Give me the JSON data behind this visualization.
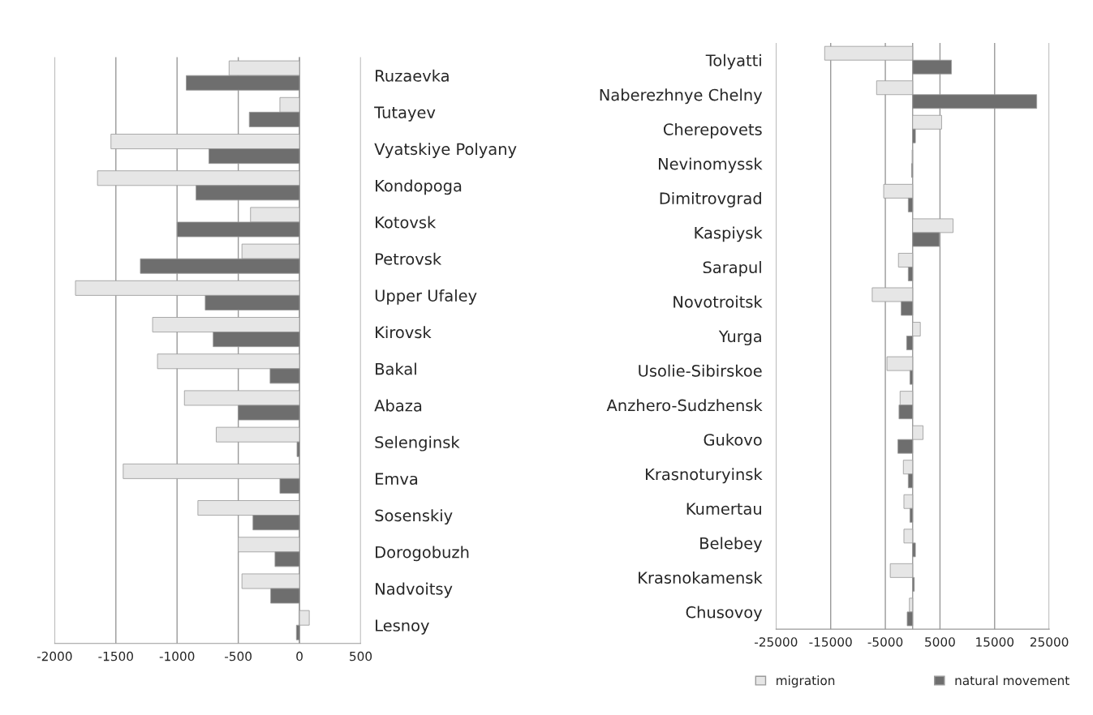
{
  "chart_data": [
    {
      "type": "bar",
      "orientation": "horizontal",
      "categories": [
        "Ruzaevka",
        "Tutayev",
        "Vyatskiye Polyany",
        "Kondopoga",
        "Kotovsk",
        "Petrovsk",
        "Upper Ufaley",
        "Kirovsk",
        "Bakal",
        "Abaza",
        "Selenginsk",
        "Emva",
        "Sosenskiy",
        "Dorogobuzh",
        "Nadvoitsy",
        "Lesnoy"
      ],
      "series": [
        {
          "color": "#e6e6e6",
          "values": [
            -575,
            -160,
            -1540,
            -1650,
            -400,
            -470,
            -1830,
            -1200,
            -1160,
            -940,
            -680,
            -1440,
            -830,
            -500,
            -470,
            80
          ]
        },
        {
          "color": "#6e6e6e",
          "values": [
            -925,
            -410,
            -740,
            -845,
            -1000,
            -1300,
            -770,
            -705,
            -240,
            -500,
            -20,
            -160,
            -380,
            -200,
            -235,
            -25
          ]
        }
      ],
      "xlim": [
        -2000,
        500
      ],
      "xticks": [
        -2000,
        -1500,
        -1000,
        -500,
        0,
        500
      ],
      "grid": "x",
      "legend": false
    },
    {
      "type": "bar",
      "orientation": "horizontal",
      "categories": [
        "Tolyatti",
        "Naberezhnye Chelny",
        "Cherepovets",
        "Nevinomyssk",
        "Dimitrovgrad",
        "Kaspiysk",
        "Sarapul",
        "Novotroitsk",
        "Yurga",
        "Usolie-Sibirskoe",
        "Anzhero-Sudzhensk",
        "Gukovo",
        "Krasnoturyinsk",
        "Kumertau",
        "Belebey",
        "Krasnokamensk",
        "Chusovoy"
      ],
      "series": [
        {
          "name": "migration",
          "color": "#e6e6e6",
          "values": [
            -16100,
            -6600,
            5300,
            -100,
            -5300,
            7400,
            -2600,
            -7400,
            1400,
            -4700,
            -2300,
            1900,
            -1700,
            -1600,
            -1600,
            -4100,
            -600
          ]
        },
        {
          "name": "natural movement",
          "color": "#6e6e6e",
          "values": [
            7100,
            22700,
            500,
            -200,
            -800,
            4900,
            -800,
            -2100,
            -1100,
            -500,
            -2500,
            -2700,
            -800,
            -500,
            500,
            300,
            -1000
          ]
        }
      ],
      "xlim": [
        -25000,
        25000
      ],
      "xticks": [
        -25000,
        -15000,
        -5000,
        5000,
        15000,
        25000
      ],
      "grid": "x",
      "legend": "bottom"
    }
  ]
}
